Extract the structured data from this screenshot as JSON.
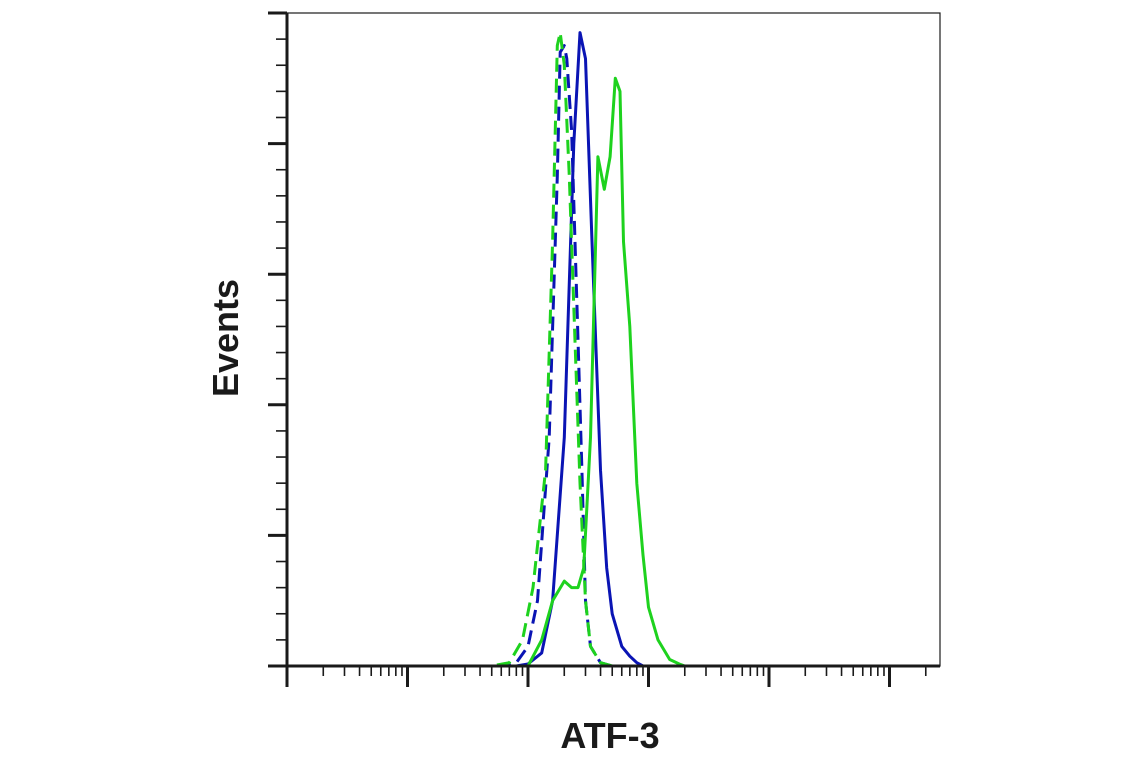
{
  "chart_data": {
    "type": "line",
    "title": "",
    "xlabel": "ATF-3",
    "ylabel": "Events",
    "x_scale": "log",
    "xlim": [
      1,
      100000
    ],
    "ylim": [
      0,
      100
    ],
    "grid": false,
    "legend": "none",
    "series": [
      {
        "color": "#0a14b4",
        "style": "dashed",
        "x": [
          1,
          10,
          60,
          80,
          100,
          120,
          150,
          175,
          185,
          200,
          210,
          230,
          260,
          280,
          300,
          330,
          400,
          500,
          1000,
          10000,
          100000
        ],
        "y": [
          0,
          0,
          0,
          0.5,
          3,
          10,
          35,
          75,
          94,
          95,
          93,
          82,
          50,
          30,
          10,
          3,
          0.5,
          0,
          0,
          0,
          0
        ]
      },
      {
        "color": "#0a14b4",
        "style": "solid",
        "x": [
          1,
          10,
          80,
          100,
          130,
          160,
          200,
          240,
          270,
          300,
          340,
          400,
          450,
          500,
          600,
          700,
          800,
          900,
          1000,
          10000,
          100000
        ],
        "y": [
          0,
          0,
          0,
          0.3,
          2,
          10,
          35,
          80,
          97,
          93,
          65,
          30,
          15,
          8,
          3,
          1.5,
          0.5,
          0,
          0,
          0,
          0
        ]
      },
      {
        "color": "#1ed21e",
        "style": "dashed",
        "x": [
          1,
          10,
          50,
          70,
          90,
          110,
          140,
          160,
          175,
          185,
          200,
          220,
          240,
          270,
          300,
          330,
          400,
          500,
          1000,
          10000,
          100000
        ],
        "y": [
          0,
          0,
          0,
          0.5,
          4,
          12,
          30,
          65,
          95,
          97,
          92,
          75,
          55,
          28,
          10,
          3,
          0.5,
          0,
          0,
          0,
          0
        ]
      },
      {
        "color": "#1ed21e",
        "style": "solid",
        "x": [
          1,
          10,
          100,
          130,
          160,
          200,
          230,
          260,
          290,
          330,
          380,
          430,
          480,
          530,
          580,
          620,
          700,
          800,
          900,
          1000,
          1200,
          1500,
          1800,
          2000,
          10000,
          100000
        ],
        "y": [
          0,
          0,
          0,
          4,
          10,
          13,
          12,
          12,
          15,
          35,
          78,
          73,
          78,
          90,
          88,
          65,
          52,
          28,
          17,
          9,
          4,
          1,
          0.3,
          0,
          0,
          0
        ]
      }
    ]
  }
}
